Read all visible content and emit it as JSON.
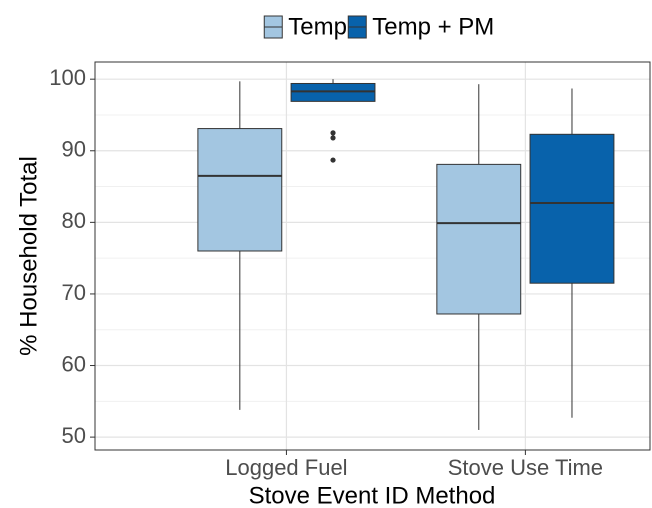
{
  "chart_data": {
    "type": "boxplot",
    "x_label": "Stove Event ID Method",
    "y_label": "% Household Total",
    "categories": [
      "Logged Fuel",
      "Stove Use Time"
    ],
    "ylim": [
      48.2,
      102.4
    ],
    "yticks": [
      50,
      60,
      70,
      80,
      90,
      100
    ],
    "minor_yticks": [
      55,
      65,
      75,
      85,
      95
    ],
    "grid": true,
    "legend_position": "top",
    "series": [
      {
        "name": "Temp",
        "color": "#a3c6e1",
        "boxes": [
          {
            "min": 53.8,
            "q1": 76.0,
            "median": 86.5,
            "q3": 93.1,
            "max": 99.7,
            "outliers": []
          },
          {
            "min": 51.0,
            "q1": 67.2,
            "median": 79.9,
            "q3": 88.1,
            "max": 99.3,
            "outliers": []
          }
        ]
      },
      {
        "name": "Temp + PM",
        "color": "#0862ab",
        "boxes": [
          {
            "min": 96.9,
            "q1": 96.9,
            "median": 98.3,
            "q3": 99.4,
            "max": 100.0,
            "outliers": [
              92.5,
              91.8,
              88.7
            ]
          },
          {
            "min": 52.7,
            "q1": 71.5,
            "median": 82.7,
            "q3": 92.3,
            "max": 98.7,
            "outliers": []
          }
        ]
      }
    ]
  }
}
